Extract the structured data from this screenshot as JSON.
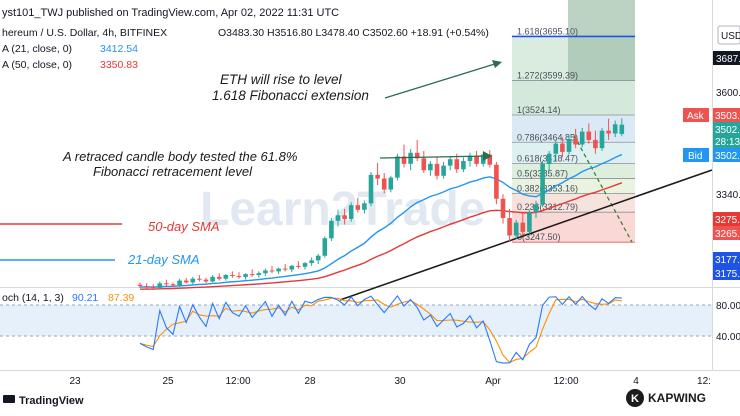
{
  "header": {
    "publisher": "yst101_TWJ published on TradingView.com, Apr 02, 2022 11:31 UTC",
    "symbol": "hereum / U.S. Dollar, 4h, BITFINEX",
    "ohlc": "O3483.30  H3516.80  L3478.40  C3502.60  +18.91 (+0.54%)",
    "ema21_label": "A (21, close, 0)",
    "ema21_value": "3412.54",
    "ema50_label": "A (50, close, 0)",
    "ema50_value": "3350.83",
    "currency": "USD"
  },
  "annotations": {
    "eth_rise_line1": "ETH will rise to level",
    "eth_rise_line2": "1.618 Fibonacci extension",
    "retrace_line1": "A retraced candle body tested the 61.8%",
    "retrace_line2": "Fibonacci retracement level",
    "sma50": "50-day SMA",
    "sma21": "21-day SMA",
    "watermark": "Learn2Trade"
  },
  "fib_labels": [
    "1.618(3695.10)",
    "1.272(3599.39)",
    "1(3524.14)",
    "0.786(3464.85)",
    "0.618(3418.47)",
    "0.5(3385.87)",
    "0.382(3353.16)",
    "0.236(3312.79)",
    "0(3247.50)"
  ],
  "price_axis": {
    "ticks": [
      "3687.",
      "3600.",
      "3340.",
      "80.00",
      "40.00"
    ],
    "ask_label": "Ask",
    "ask_value": "3503.",
    "price_value": "3502.",
    "countdown": "28:13",
    "bid_label": "Bid",
    "bid_value": "3502.",
    "tag_a": "3275.",
    "tag_b": "3265.",
    "tag_c": "3177.",
    "tag_d": "3175."
  },
  "time_axis": [
    "23",
    "25",
    "12:00",
    "28",
    "30",
    "Apr",
    "12:00",
    "4",
    "12:"
  ],
  "stoch": {
    "label": "och (14, 1, 3)",
    "k_value": "90.21",
    "d_value": "87.39"
  },
  "footer": {
    "brand": "TradingView",
    "kapwing": "KAPWING"
  },
  "colors": {
    "up": "#26a69a",
    "down": "#ef5350",
    "ema21": "#2196f3",
    "ema50": "#e53935",
    "trend": "#1b1b1b",
    "annotation": "#2e6b4f",
    "stoch_k": "#2979ff",
    "stoch_d": "#ff8f00"
  },
  "chart_data": {
    "type": "candlestick",
    "timeframe": "4h",
    "y_range": [
      3150,
      3720
    ],
    "fibonacci": [
      {
        "level": 1.618,
        "price": 3695.1
      },
      {
        "level": 1.272,
        "price": 3599.39
      },
      {
        "level": 1.0,
        "price": 3524.14
      },
      {
        "level": 0.786,
        "price": 3464.85
      },
      {
        "level": 0.618,
        "price": 3418.47
      },
      {
        "level": 0.5,
        "price": 3385.87
      },
      {
        "level": 0.382,
        "price": 3353.16
      },
      {
        "level": 0.236,
        "price": 3312.79
      },
      {
        "level": 0.0,
        "price": 3247.5
      }
    ],
    "candles": [
      [
        3155,
        3160,
        3148,
        3152
      ],
      [
        3152,
        3158,
        3146,
        3150
      ],
      [
        3150,
        3156,
        3144,
        3148
      ],
      [
        3148,
        3162,
        3146,
        3158
      ],
      [
        3158,
        3166,
        3152,
        3156
      ],
      [
        3156,
        3160,
        3150,
        3154
      ],
      [
        3154,
        3168,
        3150,
        3164
      ],
      [
        3164,
        3170,
        3158,
        3160
      ],
      [
        3160,
        3172,
        3156,
        3168
      ],
      [
        3168,
        3176,
        3162,
        3166
      ],
      [
        3166,
        3170,
        3158,
        3162
      ],
      [
        3162,
        3176,
        3160,
        3172
      ],
      [
        3172,
        3180,
        3164,
        3168
      ],
      [
        3168,
        3178,
        3164,
        3176
      ],
      [
        3176,
        3184,
        3170,
        3174
      ],
      [
        3174,
        3182,
        3168,
        3172
      ],
      [
        3172,
        3180,
        3166,
        3178
      ],
      [
        3178,
        3188,
        3172,
        3176
      ],
      [
        3176,
        3184,
        3170,
        3180
      ],
      [
        3180,
        3190,
        3174,
        3186
      ],
      [
        3186,
        3196,
        3180,
        3184
      ],
      [
        3184,
        3192,
        3178,
        3190
      ],
      [
        3190,
        3200,
        3184,
        3188
      ],
      [
        3188,
        3198,
        3182,
        3196
      ],
      [
        3196,
        3206,
        3190,
        3194
      ],
      [
        3194,
        3204,
        3188,
        3202
      ],
      [
        3202,
        3214,
        3196,
        3208
      ],
      [
        3208,
        3222,
        3200,
        3218
      ],
      [
        3218,
        3260,
        3214,
        3256
      ],
      [
        3256,
        3300,
        3250,
        3294
      ],
      [
        3294,
        3318,
        3282,
        3306
      ],
      [
        3306,
        3320,
        3286,
        3298
      ],
      [
        3298,
        3334,
        3292,
        3328
      ],
      [
        3328,
        3344,
        3312,
        3318
      ],
      [
        3318,
        3338,
        3310,
        3332
      ],
      [
        3332,
        3400,
        3326,
        3394
      ],
      [
        3394,
        3420,
        3372,
        3386
      ],
      [
        3386,
        3398,
        3354,
        3362
      ],
      [
        3362,
        3392,
        3356,
        3388
      ],
      [
        3388,
        3440,
        3382,
        3434
      ],
      [
        3434,
        3460,
        3410,
        3418
      ],
      [
        3418,
        3450,
        3404,
        3442
      ],
      [
        3442,
        3470,
        3424,
        3430
      ],
      [
        3430,
        3446,
        3398,
        3404
      ],
      [
        3404,
        3424,
        3392,
        3418
      ],
      [
        3418,
        3432,
        3384,
        3392
      ],
      [
        3392,
        3422,
        3386,
        3414
      ],
      [
        3414,
        3434,
        3404,
        3428
      ],
      [
        3428,
        3440,
        3398,
        3406
      ],
      [
        3406,
        3432,
        3400,
        3424
      ],
      [
        3424,
        3442,
        3412,
        3436
      ],
      [
        3436,
        3446,
        3412,
        3418
      ],
      [
        3418,
        3444,
        3412,
        3438
      ],
      [
        3438,
        3448,
        3410,
        3416
      ],
      [
        3416,
        3422,
        3330,
        3342
      ],
      [
        3342,
        3352,
        3288,
        3300
      ],
      [
        3300,
        3320,
        3248,
        3262
      ],
      [
        3262,
        3296,
        3254,
        3290
      ],
      [
        3290,
        3312,
        3262,
        3270
      ],
      [
        3270,
        3318,
        3266,
        3312
      ],
      [
        3312,
        3338,
        3300,
        3330
      ],
      [
        3330,
        3424,
        3324,
        3418
      ],
      [
        3418,
        3446,
        3402,
        3440
      ],
      [
        3440,
        3470,
        3424,
        3462
      ],
      [
        3462,
        3476,
        3432,
        3444
      ],
      [
        3444,
        3480,
        3438,
        3472
      ],
      [
        3472,
        3494,
        3452,
        3460
      ],
      [
        3460,
        3496,
        3454,
        3488
      ],
      [
        3488,
        3506,
        3462,
        3470
      ],
      [
        3470,
        3490,
        3440,
        3452
      ],
      [
        3452,
        3496,
        3446,
        3490
      ],
      [
        3490,
        3516,
        3470,
        3484
      ],
      [
        3484,
        3512,
        3476,
        3504
      ],
      [
        3483,
        3517,
        3478,
        3503
      ]
    ],
    "stochastic": {
      "k_last": 90.21,
      "d_last": 87.39,
      "levels": [
        80,
        40
      ]
    }
  }
}
